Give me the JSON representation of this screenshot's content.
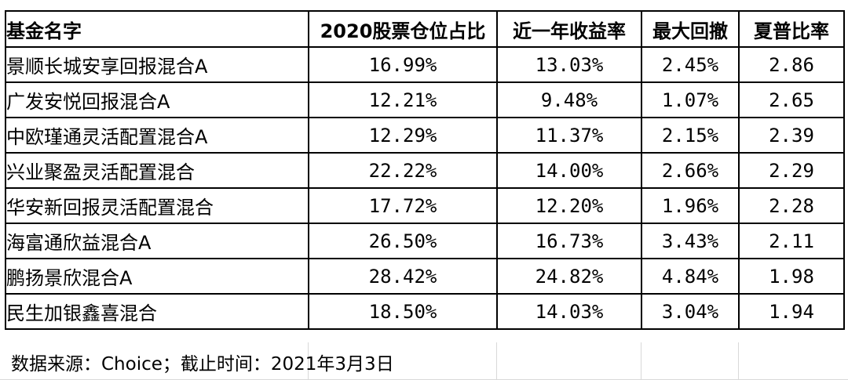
{
  "table": {
    "headers": [
      "基金名字",
      "2020股票仓位占比",
      "近一年收益率",
      "最大回撤",
      "夏普比率"
    ],
    "rows": [
      [
        "景顺长城安享回报混合A",
        "16.99%",
        "13.03%",
        "2.45%",
        "2.86"
      ],
      [
        "广发安悦回报混合A",
        "12.21%",
        "9.48%",
        "1.07%",
        "2.65"
      ],
      [
        "中欧瑾通灵活配置混合A",
        "12.29%",
        "11.37%",
        "2.15%",
        "2.39"
      ],
      [
        "兴业聚盈灵活配置混合",
        "22.22%",
        "14.00%",
        "2.66%",
        "2.29"
      ],
      [
        "华安新回报灵活配置混合",
        "17.72%",
        "12.20%",
        "1.96%",
        "2.28"
      ],
      [
        "海富通欣益混合A",
        "26.50%",
        "16.73%",
        "3.43%",
        "2.11"
      ],
      [
        "鹏扬景欣混合A",
        "28.42%",
        "24.82%",
        "4.84%",
        "1.98"
      ],
      [
        "民生加银鑫喜混合",
        "18.50%",
        "14.03%",
        "3.04%",
        "1.94"
      ]
    ]
  },
  "footer": {
    "source_note": "数据来源：Choice；截止时间：2021年3月3日"
  }
}
